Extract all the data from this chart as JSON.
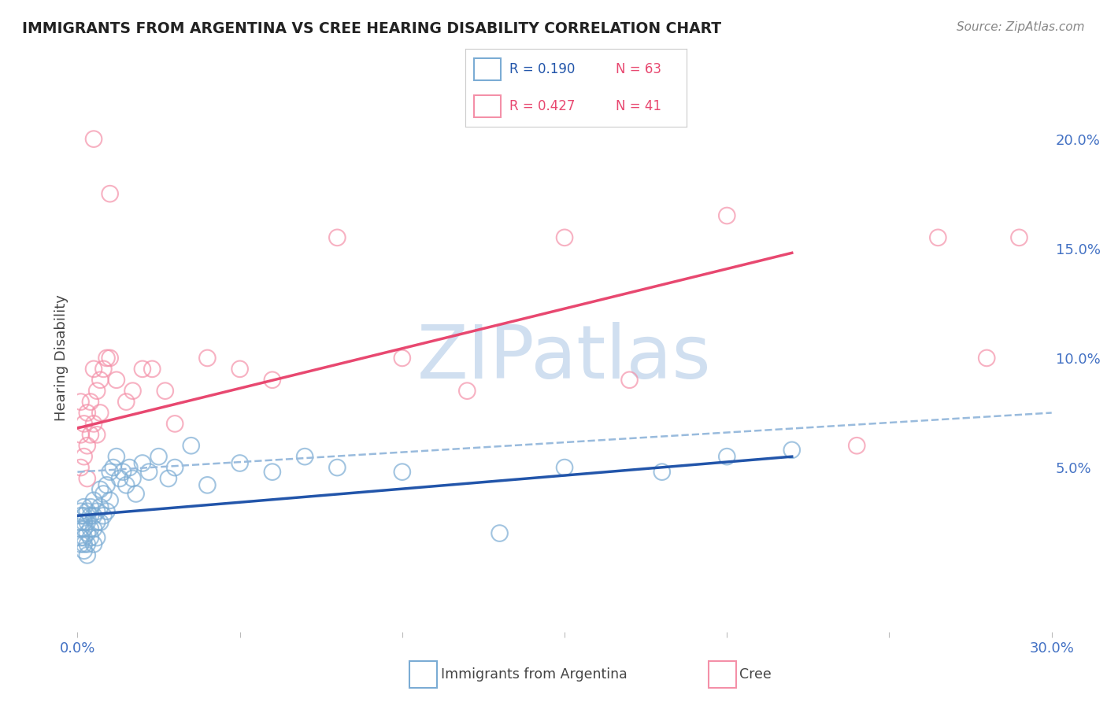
{
  "title": "IMMIGRANTS FROM ARGENTINA VS CREE HEARING DISABILITY CORRELATION CHART",
  "source": "Source: ZipAtlas.com",
  "ylabel": "Hearing Disability",
  "xlim": [
    0.0,
    0.3
  ],
  "ylim": [
    -0.025,
    0.225
  ],
  "blue_color": "#7bacd4",
  "pink_color": "#f490a8",
  "blue_line_color": "#2255aa",
  "pink_line_color": "#e84870",
  "dashed_line_color": "#99bbdd",
  "watermark_color": "#d0dff0",
  "background_color": "#ffffff",
  "grid_color": "#dddddd",
  "blue_scatter_x": [
    0.001,
    0.001,
    0.001,
    0.001,
    0.001,
    0.001,
    0.002,
    0.002,
    0.002,
    0.002,
    0.002,
    0.002,
    0.002,
    0.003,
    0.003,
    0.003,
    0.003,
    0.003,
    0.004,
    0.004,
    0.004,
    0.004,
    0.005,
    0.005,
    0.005,
    0.005,
    0.006,
    0.006,
    0.006,
    0.007,
    0.007,
    0.007,
    0.008,
    0.008,
    0.009,
    0.009,
    0.01,
    0.01,
    0.011,
    0.012,
    0.013,
    0.014,
    0.015,
    0.016,
    0.017,
    0.018,
    0.02,
    0.022,
    0.025,
    0.028,
    0.03,
    0.035,
    0.04,
    0.05,
    0.06,
    0.07,
    0.08,
    0.1,
    0.13,
    0.15,
    0.18,
    0.2,
    0.22
  ],
  "blue_scatter_y": [
    0.03,
    0.028,
    0.025,
    0.022,
    0.018,
    0.015,
    0.032,
    0.028,
    0.025,
    0.022,
    0.018,
    0.015,
    0.012,
    0.03,
    0.025,
    0.02,
    0.015,
    0.01,
    0.032,
    0.028,
    0.022,
    0.018,
    0.035,
    0.028,
    0.022,
    0.015,
    0.03,
    0.025,
    0.018,
    0.04,
    0.032,
    0.025,
    0.038,
    0.028,
    0.042,
    0.03,
    0.048,
    0.035,
    0.05,
    0.055,
    0.045,
    0.048,
    0.042,
    0.05,
    0.045,
    0.038,
    0.052,
    0.048,
    0.055,
    0.045,
    0.05,
    0.06,
    0.042,
    0.052,
    0.048,
    0.055,
    0.05,
    0.048,
    0.02,
    0.05,
    0.048,
    0.055,
    0.058
  ],
  "pink_scatter_x": [
    0.001,
    0.001,
    0.001,
    0.002,
    0.002,
    0.003,
    0.003,
    0.003,
    0.004,
    0.004,
    0.005,
    0.005,
    0.006,
    0.006,
    0.007,
    0.007,
    0.008,
    0.009,
    0.01,
    0.012,
    0.015,
    0.017,
    0.02,
    0.023,
    0.027,
    0.03,
    0.04,
    0.05,
    0.06,
    0.08,
    0.1,
    0.12,
    0.15,
    0.17,
    0.2,
    0.24,
    0.265,
    0.28,
    0.29,
    0.01,
    0.005
  ],
  "pink_scatter_y": [
    0.065,
    0.05,
    0.08,
    0.07,
    0.055,
    0.075,
    0.06,
    0.045,
    0.08,
    0.065,
    0.095,
    0.07,
    0.085,
    0.065,
    0.09,
    0.075,
    0.095,
    0.1,
    0.1,
    0.09,
    0.08,
    0.085,
    0.095,
    0.095,
    0.085,
    0.07,
    0.1,
    0.095,
    0.09,
    0.155,
    0.1,
    0.085,
    0.155,
    0.09,
    0.165,
    0.06,
    0.155,
    0.1,
    0.155,
    0.175,
    0.2
  ],
  "blue_line_x0": 0.0,
  "blue_line_x1": 0.22,
  "blue_line_y0": 0.028,
  "blue_line_y1": 0.055,
  "pink_line_x0": 0.0,
  "pink_line_x1": 0.22,
  "pink_line_y0": 0.068,
  "pink_line_y1": 0.148,
  "dashed_line_x0": 0.0,
  "dashed_line_x1": 0.3,
  "dashed_line_y0": 0.048,
  "dashed_line_y1": 0.075
}
